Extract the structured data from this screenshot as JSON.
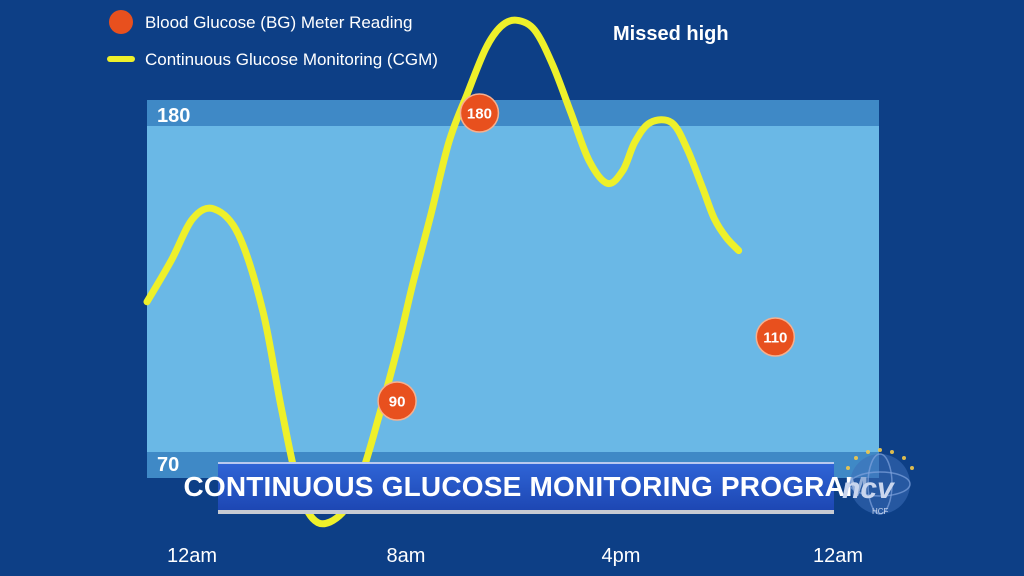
{
  "colors": {
    "background": "#0d3f86",
    "target_band": "#6ab8e6",
    "band_edge": "#3f89c6",
    "cgm_line": "#eef02a",
    "bg_marker": "#e8501e"
  },
  "legend": {
    "bg_label": "Blood Glucose (BG) Meter Reading",
    "cgm_label": "Continuous Glucose Monitoring (CGM)"
  },
  "annotation": "Missed high",
  "banner": {
    "text": "CONTINUOUS GLUCOSE MONITORING PROGRAM"
  },
  "channel_logo": {
    "icon": "ncv-globe-logo",
    "text": "ncv",
    "subtext": "HCF"
  },
  "chart_data": {
    "type": "line",
    "title": "",
    "xlabel": "",
    "ylabel": "",
    "x_ticks": [
      "12am",
      "8am",
      "4pm",
      "12am"
    ],
    "xlim": [
      0,
      24
    ],
    "ylim": [
      64,
      206
    ],
    "target_range": {
      "low": 70,
      "high": 180,
      "low_label": "70",
      "high_label": "180"
    },
    "legend_position": "top-left",
    "grid": false,
    "series": [
      {
        "name": "Continuous Glucose Monitoring (CGM)",
        "type": "line",
        "color": "#eef02a",
        "x": [
          0.0,
          0.8,
          1.5,
          2.2,
          3.0,
          3.8,
          4.4,
          5.0,
          5.6,
          6.4,
          7.0,
          7.6,
          8.2,
          8.7,
          9.3,
          9.9,
          10.5,
          11.1,
          11.6,
          12.1,
          12.7,
          13.3,
          13.9,
          14.5,
          15.1,
          15.6,
          16.0,
          16.5,
          17.2,
          17.7,
          18.2,
          18.6,
          19.0,
          19.4
        ],
        "y": [
          121,
          134,
          147,
          150,
          142,
          118,
          88,
          62,
          52,
          55,
          66,
          85,
          106,
          126,
          148,
          171,
          186,
          200,
          207,
          209,
          206,
          195,
          180,
          165,
          158,
          162,
          171,
          177,
          177,
          169,
          157,
          147,
          141,
          137
        ]
      },
      {
        "name": "Blood Glucose (BG) Meter Reading",
        "type": "scatter",
        "color": "#e8501e",
        "x": [
          8.2,
          10.9,
          20.6
        ],
        "y": [
          90,
          180,
          110
        ],
        "labels": [
          "90",
          "180",
          "110"
        ]
      }
    ]
  }
}
